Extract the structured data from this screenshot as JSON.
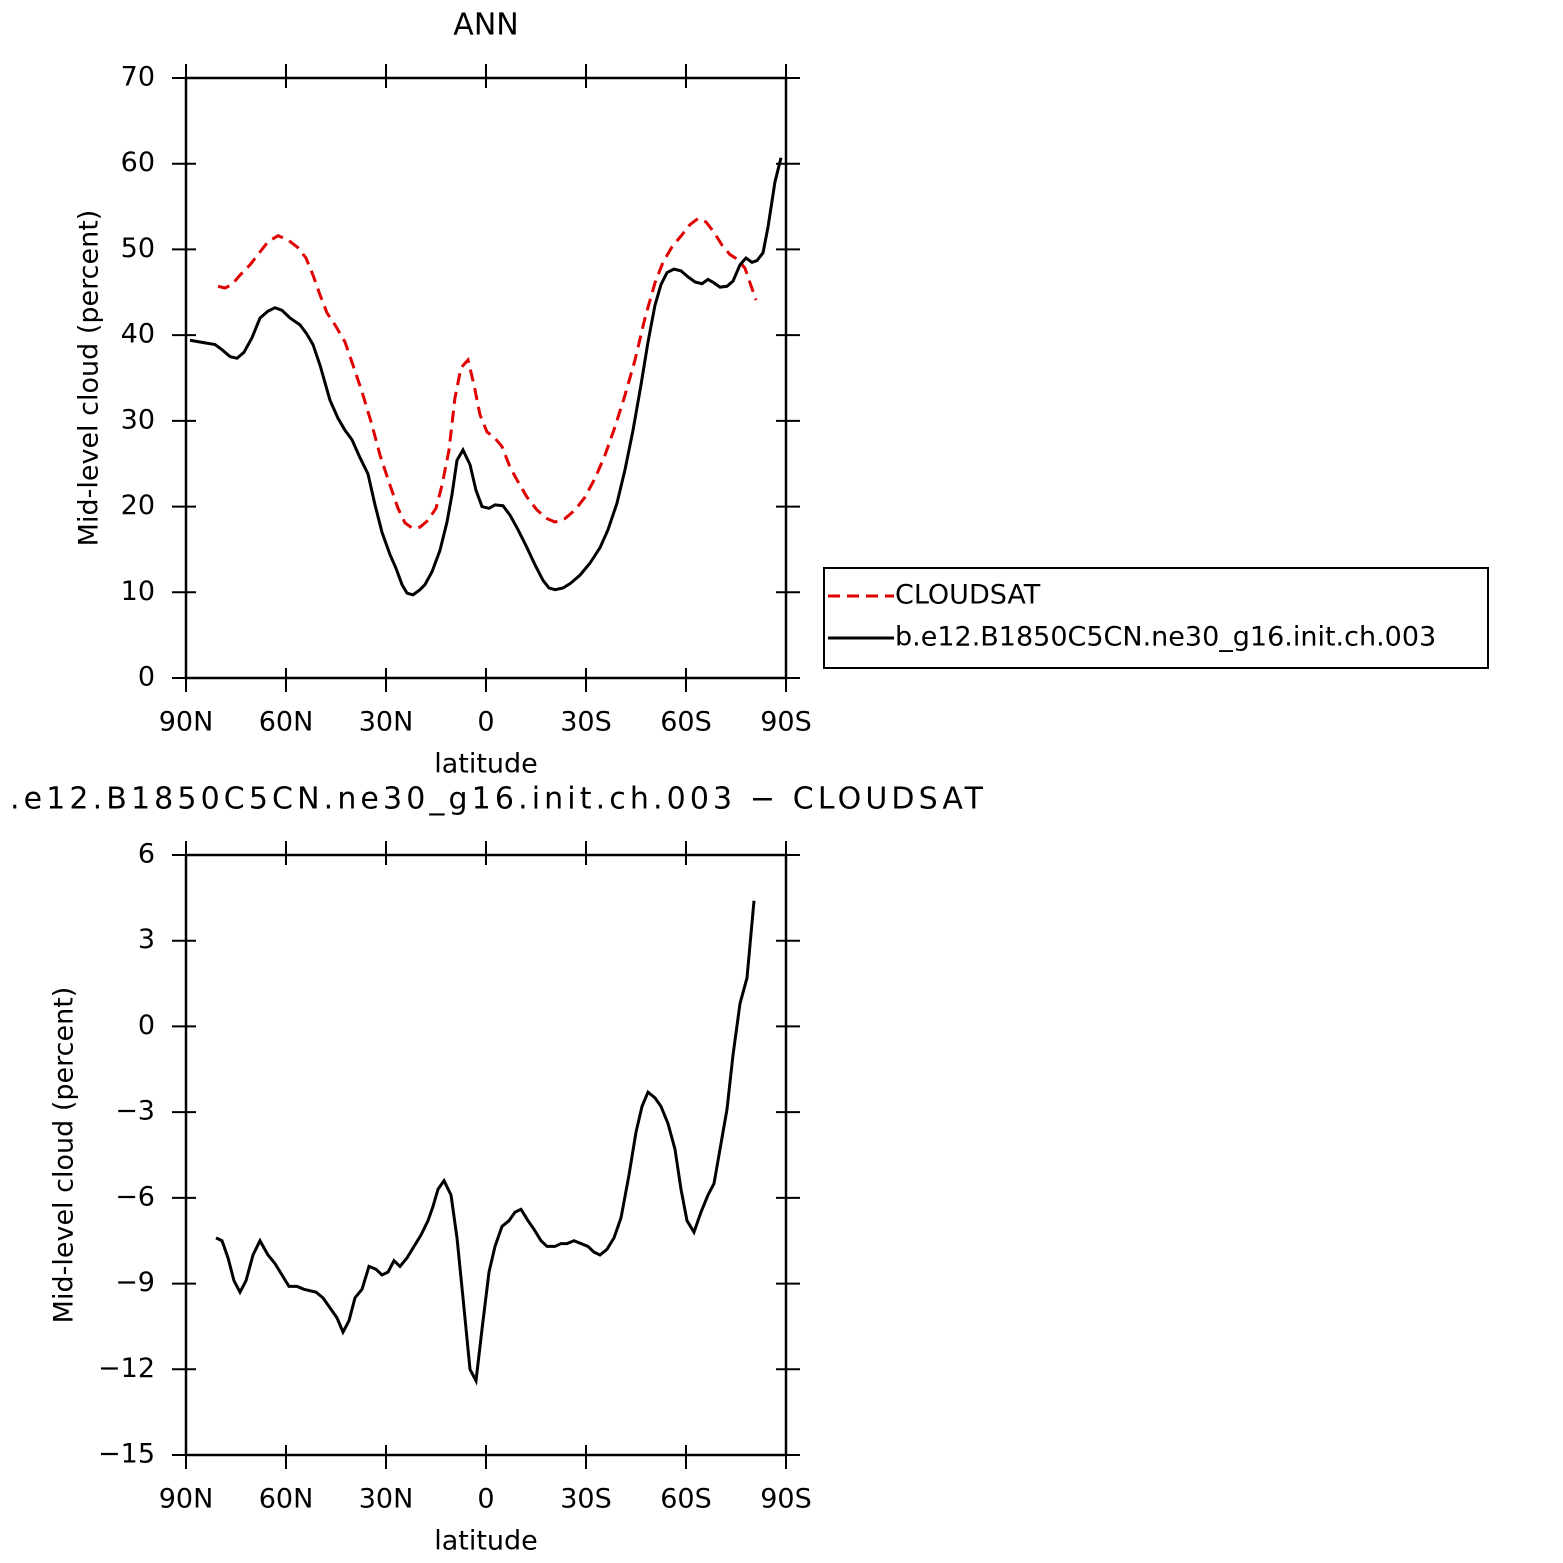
{
  "chart_data": [
    {
      "type": "line",
      "title": "ANN",
      "xlabel": "latitude",
      "ylabel": "Mid-level cloud (percent)",
      "xlim": [
        90,
        -90
      ],
      "xticks": [
        {
          "value": 90,
          "label": "90N"
        },
        {
          "value": 60,
          "label": "60N"
        },
        {
          "value": 30,
          "label": "30N"
        },
        0,
        {
          "value": -30,
          "label": "30S"
        },
        {
          "value": -60,
          "label": "60S"
        },
        {
          "value": -90,
          "label": "90S"
        }
      ],
      "ylim": [
        0,
        70
      ],
      "yticks": [
        0,
        10,
        20,
        30,
        40,
        50,
        60,
        70
      ],
      "legend": "right",
      "series": [
        {
          "name": "CLOUDSAT",
          "color": "#e00000",
          "line_style": "dashed",
          "x": [
            80.4,
            78.3,
            76.2,
            73.8,
            70.8,
            67.8,
            65.4,
            62.4,
            59.4,
            56.4,
            54.0,
            51.9,
            49.8,
            47.7,
            45.3,
            42.3,
            39.9,
            37.2,
            34.2,
            31.8,
            28.8,
            26.4,
            24.3,
            22.2,
            19.8,
            17.4,
            15.0,
            13.2,
            11.1,
            9.3,
            7.5,
            5.4,
            3.6,
            1.8,
            -0.3,
            -2.4,
            -4.8,
            -7.2,
            -9.6,
            -12.3,
            -15.3,
            -18.3,
            -20.7,
            -23.7,
            -26.7,
            -29.7,
            -32.7,
            -35.7,
            -38.7,
            -41.7,
            -44.7,
            -47.7,
            -50.7,
            -53.1,
            -55.8,
            -58.8,
            -61.2,
            -63.6,
            -66.0,
            -68.4,
            -70.8,
            -73.2,
            -75.6,
            -77.7,
            -79.2,
            -81.0
          ],
          "values": [
            45.7,
            45.5,
            45.9,
            47.0,
            48.2,
            49.7,
            50.9,
            51.6,
            51.1,
            50.2,
            49.0,
            47.0,
            44.7,
            42.6,
            41.2,
            39.2,
            36.5,
            33.4,
            29.5,
            26.0,
            22.5,
            19.8,
            18.1,
            17.5,
            17.6,
            18.4,
            19.8,
            22.5,
            26.6,
            32.7,
            36.2,
            37.1,
            34.2,
            30.7,
            28.7,
            28.1,
            27.0,
            24.6,
            22.9,
            21.1,
            19.6,
            18.6,
            18.2,
            18.6,
            19.6,
            21.1,
            23.3,
            26.0,
            29.3,
            33.0,
            37.1,
            42.0,
            46.1,
            48.5,
            50.3,
            51.7,
            52.9,
            53.6,
            53.2,
            52.0,
            50.5,
            49.4,
            48.8,
            47.8,
            46.1,
            44.1
          ]
        },
        {
          "name": "b.e12.B1850C5CN.ne30_g16.init.ch.003",
          "color": "#000000",
          "line_style": "solid",
          "x": [
            88.8,
            84.3,
            81.3,
            79.2,
            76.8,
            74.7,
            72.6,
            70.2,
            67.8,
            65.4,
            63.3,
            61.2,
            58.8,
            55.8,
            53.7,
            51.9,
            49.8,
            46.8,
            44.4,
            42.3,
            40.2,
            37.8,
            35.4,
            33.3,
            31.2,
            28.8,
            27.0,
            25.2,
            23.7,
            21.9,
            19.8,
            18.3,
            16.2,
            13.8,
            11.7,
            10.2,
            8.7,
            6.9,
            4.8,
            3.0,
            1.2,
            -0.9,
            -2.7,
            -5.1,
            -7.2,
            -9.6,
            -12.3,
            -14.7,
            -17.1,
            -18.9,
            -20.7,
            -23.1,
            -25.2,
            -28.2,
            -31.2,
            -34.2,
            -36.6,
            -39.3,
            -41.7,
            -44.1,
            -46.5,
            -48.6,
            -50.7,
            -52.5,
            -54.3,
            -56.4,
            -58.5,
            -60.6,
            -62.7,
            -64.8,
            -66.6,
            -68.4,
            -70.2,
            -72.3,
            -74.1,
            -76.2,
            -78.0,
            -79.8,
            -81.3,
            -83.1,
            -84.6,
            -86.7,
            -88.5
          ],
          "values": [
            39.4,
            39.1,
            38.9,
            38.3,
            37.5,
            37.3,
            38.0,
            39.7,
            42.0,
            42.8,
            43.2,
            42.9,
            42.0,
            41.2,
            40.1,
            38.9,
            36.5,
            32.4,
            30.3,
            28.9,
            27.8,
            25.7,
            23.8,
            20.2,
            17.0,
            14.4,
            12.8,
            10.9,
            9.9,
            9.7,
            10.3,
            10.9,
            12.4,
            14.9,
            18.2,
            21.4,
            25.4,
            26.6,
            24.9,
            21.9,
            20.0,
            19.8,
            20.2,
            20.1,
            19.0,
            17.3,
            15.2,
            13.2,
            11.4,
            10.5,
            10.3,
            10.5,
            11.0,
            12.0,
            13.4,
            15.2,
            17.3,
            20.4,
            24.3,
            28.9,
            34.2,
            39.2,
            43.5,
            45.9,
            47.3,
            47.7,
            47.5,
            46.8,
            46.2,
            46.0,
            46.5,
            46.1,
            45.6,
            45.7,
            46.3,
            48.2,
            49.0,
            48.5,
            48.7,
            49.6,
            52.6,
            57.9,
            60.7
          ]
        }
      ]
    },
    {
      "type": "line",
      "title": ".e12.B1850C5CN.ne30_g16.init.ch.003 − CLOUDSAT",
      "xlabel": "latitude",
      "ylabel": "Mid-level cloud (percent)",
      "xlim": [
        90,
        -90
      ],
      "xticks": [
        {
          "value": 90,
          "label": "90N"
        },
        {
          "value": 60,
          "label": "60N"
        },
        {
          "value": 30,
          "label": "30N"
        },
        0,
        {
          "value": -30,
          "label": "30S"
        },
        {
          "value": -60,
          "label": "60S"
        },
        {
          "value": -90,
          "label": "90S"
        }
      ],
      "ylim": [
        -15,
        6
      ],
      "yticks": [
        {
          "value": -15,
          "label": "−15"
        },
        {
          "value": -12,
          "label": "−12"
        },
        {
          "value": -9,
          "label": "−9"
        },
        {
          "value": -6,
          "label": "−6"
        },
        {
          "value": -3,
          "label": "−3"
        },
        0,
        3,
        6
      ],
      "series": [
        {
          "color": "#000000",
          "line_style": "solid",
          "x": [
            81.0,
            79.2,
            77.4,
            75.6,
            73.8,
            72.0,
            69.9,
            67.8,
            65.4,
            63.3,
            61.2,
            59.1,
            56.7,
            54.6,
            51.0,
            48.9,
            46.5,
            44.7,
            42.9,
            41.1,
            39.3,
            37.2,
            35.1,
            33.0,
            31.2,
            29.4,
            27.6,
            25.8,
            23.7,
            21.6,
            19.5,
            17.4,
            15.9,
            14.4,
            12.6,
            10.5,
            8.7,
            6.9,
            4.8,
            3.0,
            1.2,
            -0.9,
            -2.7,
            -4.8,
            -6.9,
            -8.7,
            -10.5,
            -12.6,
            -14.4,
            -16.5,
            -18.3,
            -20.7,
            -22.5,
            -24.3,
            -26.4,
            -28.5,
            -30.6,
            -32.4,
            -34.2,
            -36.3,
            -38.4,
            -40.5,
            -42.9,
            -45.0,
            -46.8,
            -48.6,
            -50.7,
            -52.5,
            -54.6,
            -56.7,
            -58.5,
            -60.3,
            -62.4,
            -64.5,
            -66.6,
            -68.4,
            -70.2,
            -72.3,
            -74.1,
            -76.2,
            -78.3,
            -80.4
          ],
          "values": [
            -7.4,
            -7.5,
            -8.1,
            -8.9,
            -9.3,
            -8.9,
            -8.0,
            -7.5,
            -8.0,
            -8.3,
            -8.7,
            -9.1,
            -9.1,
            -9.2,
            -9.3,
            -9.5,
            -9.9,
            -10.2,
            -10.7,
            -10.3,
            -9.5,
            -9.2,
            -8.4,
            -8.5,
            -8.7,
            -8.6,
            -8.2,
            -8.4,
            -8.1,
            -7.7,
            -7.3,
            -6.8,
            -6.3,
            -5.7,
            -5.4,
            -5.9,
            -7.4,
            -9.5,
            -12.0,
            -12.4,
            -10.6,
            -8.6,
            -7.7,
            -7.0,
            -6.8,
            -6.5,
            -6.4,
            -6.8,
            -7.1,
            -7.5,
            -7.7,
            -7.7,
            -7.6,
            -7.6,
            -7.5,
            -7.6,
            -7.7,
            -7.9,
            -8.0,
            -7.8,
            -7.4,
            -6.7,
            -5.2,
            -3.7,
            -2.8,
            -2.3,
            -2.5,
            -2.8,
            -3.4,
            -4.3,
            -5.7,
            -6.8,
            -7.2,
            -6.5,
            -5.9,
            -5.5,
            -4.3,
            -2.9,
            -1.0,
            0.8,
            1.7,
            4.4
          ]
        }
      ]
    }
  ]
}
